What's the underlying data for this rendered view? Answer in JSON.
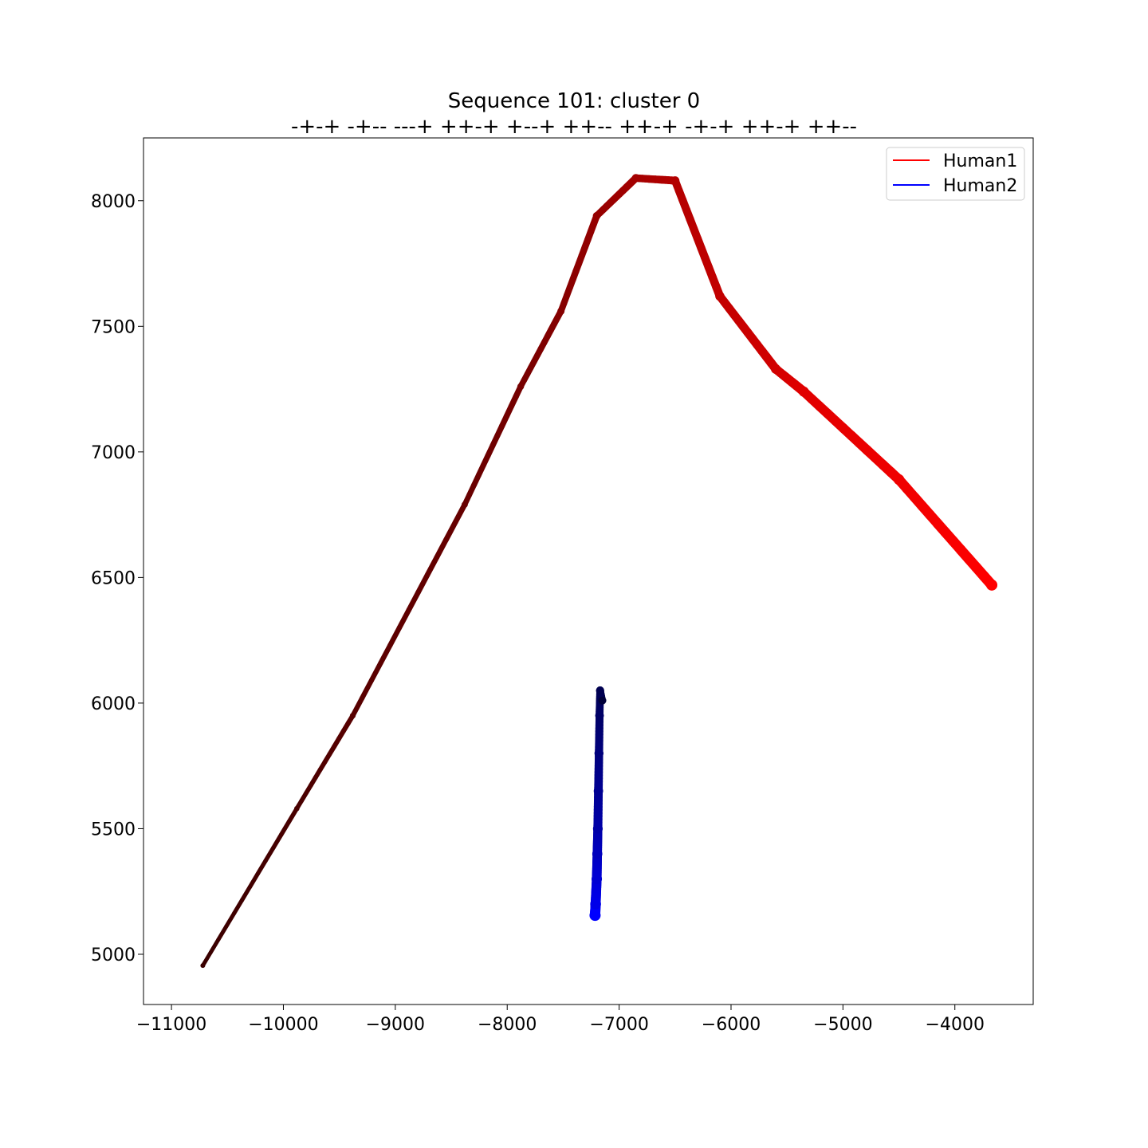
{
  "chart_data": {
    "type": "line",
    "title": "Sequence 101: cluster 0",
    "subtitle": "-+-+ -+-- ---+ ++-+ +--+ ++-- ++-+ -+-+ ++-+ ++--",
    "xlabel": "",
    "ylabel": "",
    "xlim": [
      -11250,
      -3300
    ],
    "ylim": [
      4800,
      8250
    ],
    "x_ticks": [
      -11000,
      -10000,
      -9000,
      -8000,
      -7000,
      -6000,
      -5000,
      -4000
    ],
    "x_tick_labels": [
      "−11000",
      "−10000",
      "−9000",
      "−8000",
      "−7000",
      "−6000",
      "−5000",
      "−4000"
    ],
    "y_ticks": [
      5000,
      5500,
      6000,
      6500,
      7000,
      7500,
      8000
    ],
    "y_tick_labels": [
      "5000",
      "5500",
      "6000",
      "6500",
      "7000",
      "7500",
      "8000"
    ],
    "grid": false,
    "legend_position": "top-right",
    "series": [
      {
        "name": "Human1",
        "color": "#ff0000",
        "start_color": "#3a0000",
        "end_color": "#ff0000",
        "x": [
          -10720,
          -9880,
          -9380,
          -8380,
          -7880,
          -7520,
          -7200,
          -6850,
          -6500,
          -6100,
          -5600,
          -5350,
          -4500,
          -3670
        ],
        "y": [
          4955,
          5580,
          5950,
          6790,
          7260,
          7560,
          7940,
          8090,
          8080,
          7620,
          7330,
          7240,
          6890,
          6470
        ]
      },
      {
        "name": "Human2",
        "color": "#0000ff",
        "start_color": "#00003a",
        "end_color": "#0000ff",
        "x": [
          -7150,
          -7170,
          -7175,
          -7180,
          -7185,
          -7190,
          -7195,
          -7200,
          -7210,
          -7215
        ],
        "y": [
          6010,
          6050,
          5950,
          5800,
          5650,
          5500,
          5400,
          5300,
          5200,
          5155
        ]
      }
    ]
  }
}
